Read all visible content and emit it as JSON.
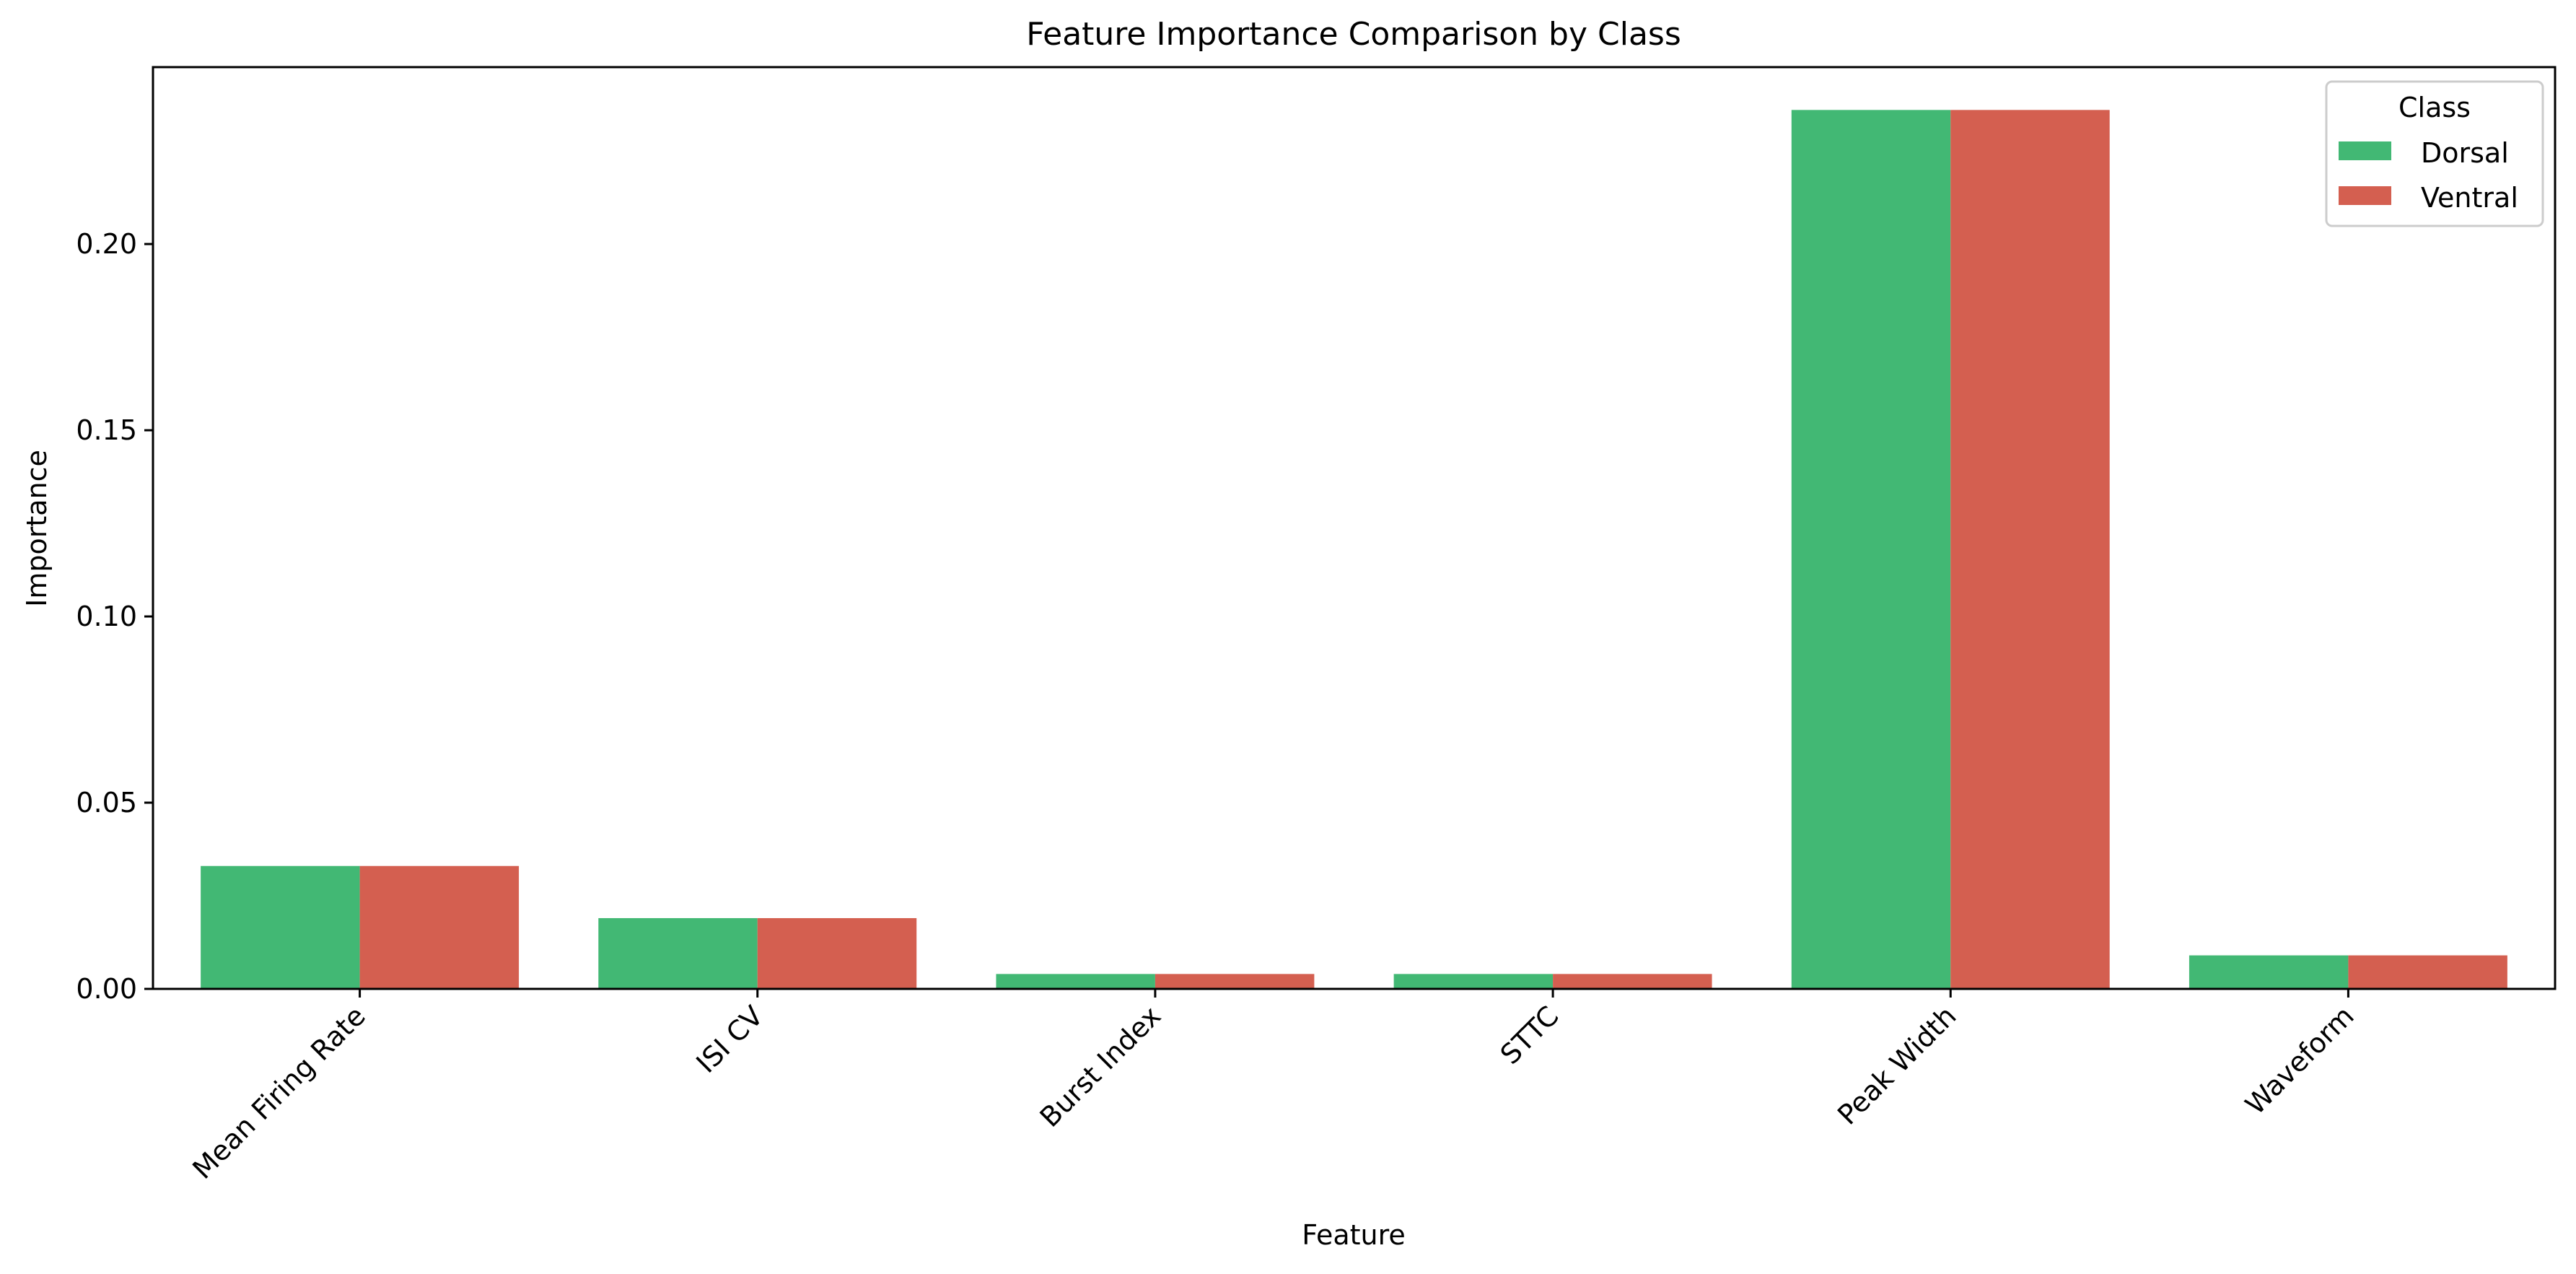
{
  "chart_data": {
    "type": "bar",
    "title": "Feature Importance Comparison by Class",
    "xlabel": "Feature",
    "ylabel": "Importance",
    "categories": [
      "Mean Firing Rate",
      "ISI CV",
      "Burst Index",
      "STTC",
      "Peak Width",
      "Waveform"
    ],
    "series": [
      {
        "name": "Dorsal",
        "color": "#42b874",
        "values": [
          0.033,
          0.019,
          0.004,
          0.004,
          0.236,
          0.009
        ]
      },
      {
        "name": "Ventral",
        "color": "#d45f50",
        "values": [
          0.033,
          0.019,
          0.004,
          0.004,
          0.236,
          0.009
        ]
      }
    ],
    "ylim": [
      0,
      0.2475
    ],
    "yticks": [
      "0.00",
      "0.05",
      "0.10",
      "0.15",
      "0.20"
    ],
    "legend": {
      "title": "Class",
      "position": "top-right"
    },
    "grid": false
  }
}
